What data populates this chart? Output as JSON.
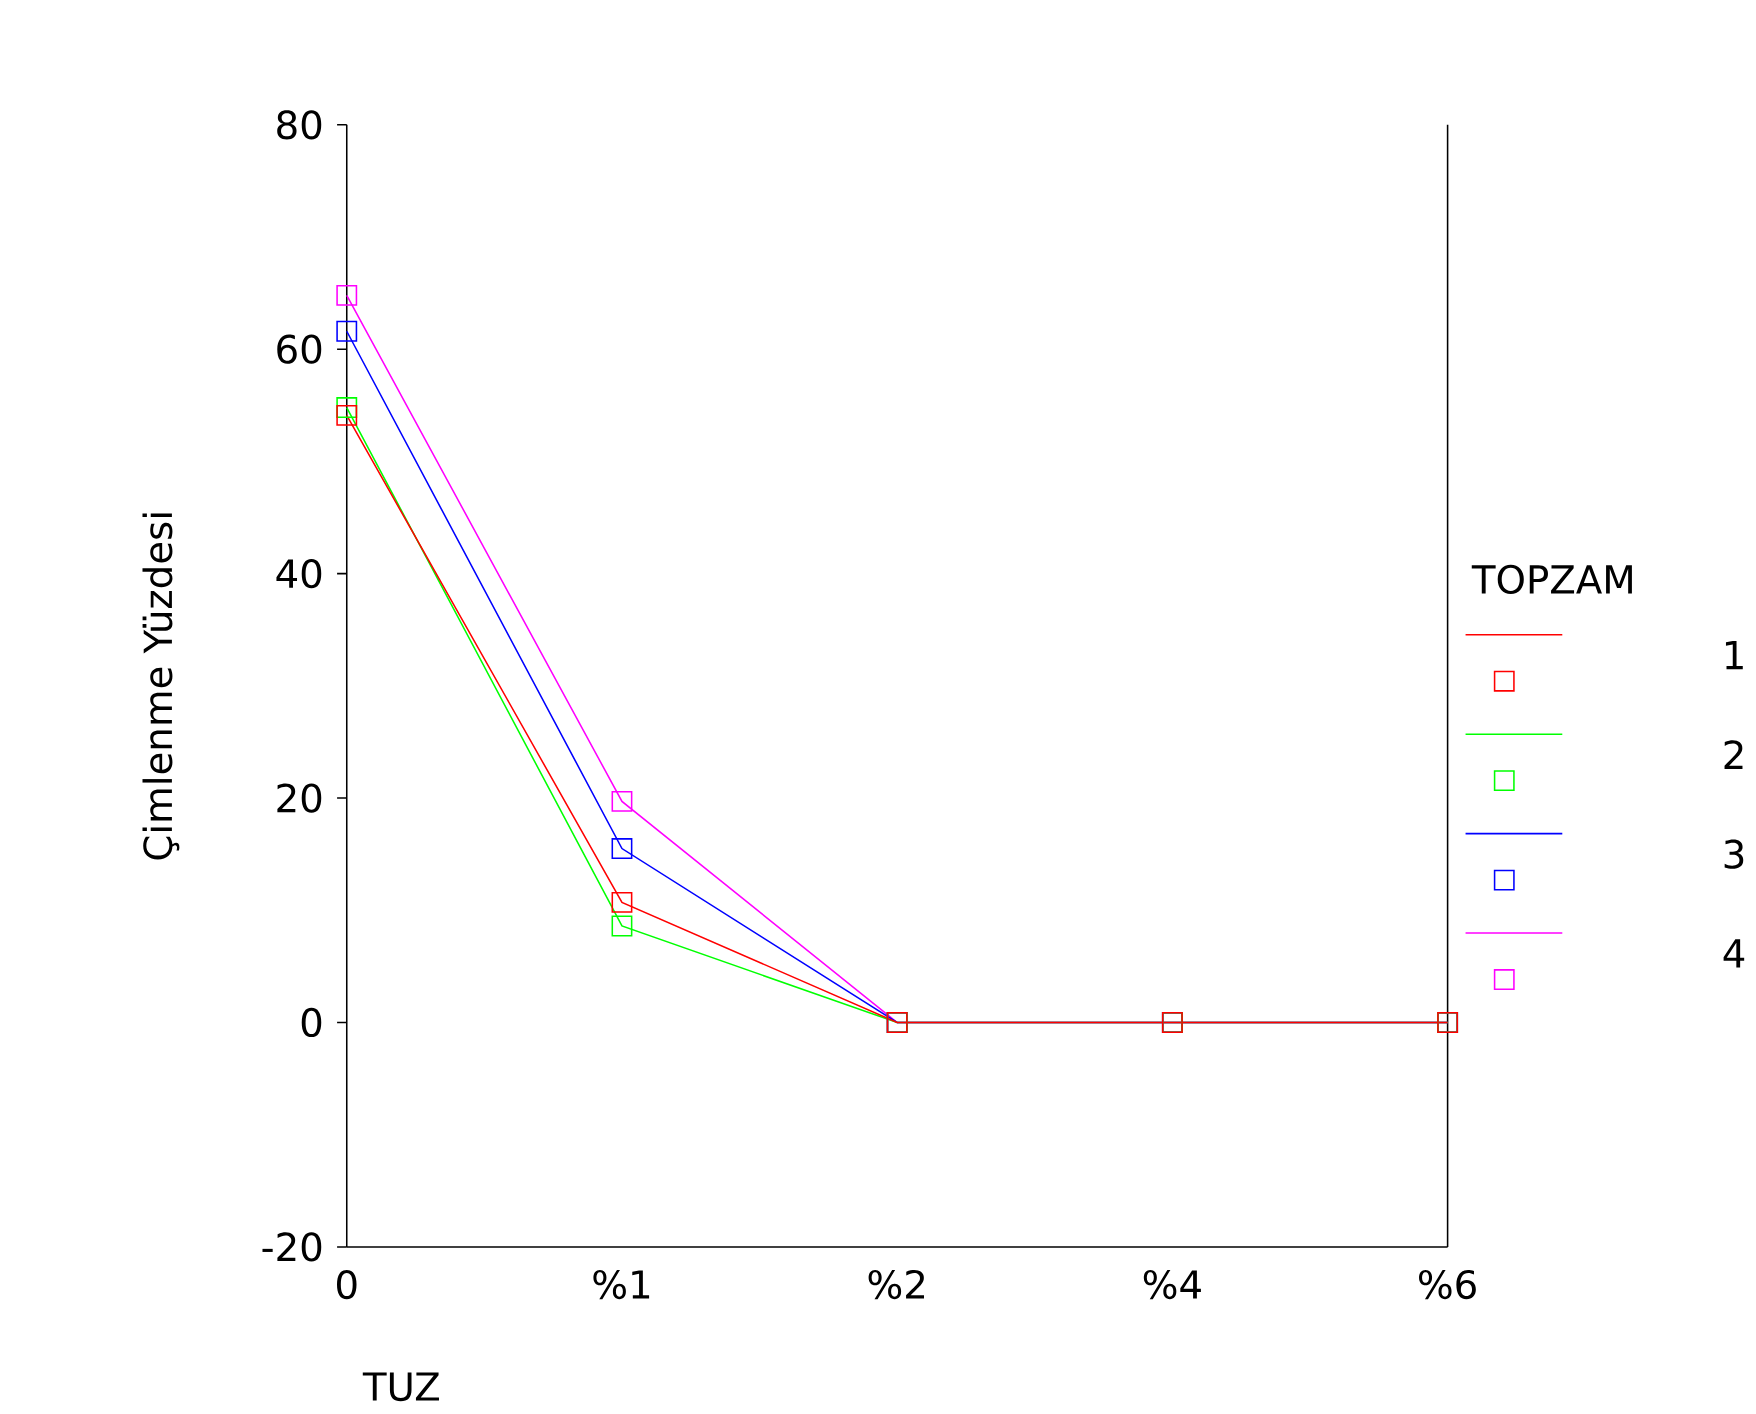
{
  "chart_data": {
    "type": "line",
    "xlabel": "TUZ",
    "ylabel": "Çimlenme Yüzdesi",
    "legend_title": "TOPZAM",
    "categories": [
      "0",
      "%1",
      "%2",
      "%4",
      "%6"
    ],
    "series": [
      {
        "name": "1",
        "color": "#ff0000",
        "values": [
          54.1,
          10.7,
          0,
          0,
          0
        ]
      },
      {
        "name": "2",
        "color": "#00ff00",
        "values": [
          54.8,
          8.6,
          0,
          0,
          0
        ]
      },
      {
        "name": "3",
        "color": "#0000ff",
        "values": [
          61.6,
          15.5,
          0,
          0,
          0
        ]
      },
      {
        "name": "4",
        "color": "#ff00ff",
        "values": [
          64.8,
          19.7,
          0,
          0,
          0
        ]
      }
    ],
    "ylim": [
      -20,
      80
    ],
    "yticks": [
      -20,
      0,
      20,
      40,
      60,
      80
    ],
    "grid": false,
    "legend": "right",
    "marker": "square",
    "line_style": "solid"
  }
}
